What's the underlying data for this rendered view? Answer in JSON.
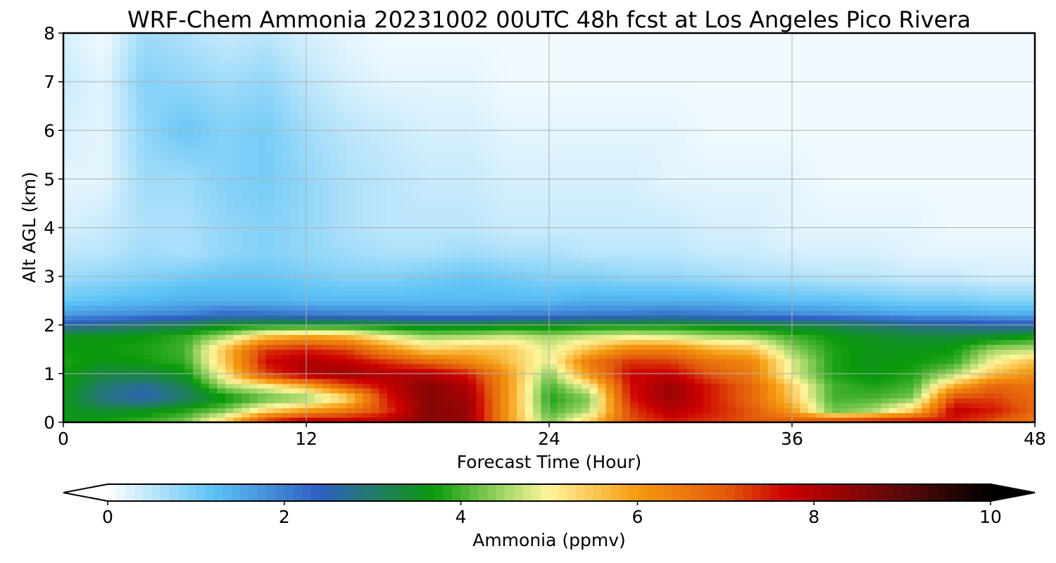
{
  "chart_data": {
    "type": "heatmap",
    "title": "WRF-Chem Ammonia  20231002 00UTC 48h fcst at Los Angeles Pico Rivera",
    "xlabel": "Forecast Time (Hour)",
    "ylabel": "Alt AGL (km)",
    "xlim": [
      0,
      48
    ],
    "ylim": [
      0,
      8
    ],
    "x_ticks": [
      "0",
      "12",
      "24",
      "36",
      "48"
    ],
    "y_ticks": [
      "0",
      "1",
      "2",
      "3",
      "4",
      "5",
      "6",
      "7",
      "8"
    ],
    "grid": true,
    "x": [
      0,
      2,
      4,
      6,
      8,
      10,
      12,
      14,
      16,
      18,
      20,
      22,
      24,
      26,
      28,
      30,
      32,
      34,
      36,
      38,
      40,
      42,
      44,
      46,
      48
    ],
    "y": [
      0,
      0.25,
      0.5,
      0.75,
      1,
      1.25,
      1.5,
      1.75,
      2,
      2.25,
      2.5,
      3,
      3.5,
      4,
      5,
      6,
      7,
      8
    ],
    "z_rows": [
      [
        3.6,
        3.8,
        4.0,
        4.3,
        5.5,
        7.5,
        8.2,
        8.0,
        8.0,
        8.5,
        8.3,
        6.0,
        4.3,
        5.5,
        7.0,
        7.5,
        7.3,
        7.0,
        7.0,
        7.5,
        7.8,
        7.8,
        7.5,
        7.0,
        6.5
      ],
      [
        3.6,
        3.4,
        3.5,
        3.8,
        4.3,
        5.3,
        6.0,
        6.5,
        7.3,
        8.5,
        8.3,
        6.0,
        4.0,
        4.6,
        7.2,
        8.0,
        7.5,
        7.0,
        6.0,
        4.2,
        4.5,
        5.5,
        7.8,
        7.5,
        6.8
      ],
      [
        3.6,
        2.8,
        2.5,
        3.0,
        3.6,
        4.1,
        4.3,
        5.2,
        7.5,
        8.5,
        8.2,
        6.0,
        3.8,
        4.3,
        7.5,
        8.3,
        7.5,
        6.8,
        5.5,
        4.0,
        4.0,
        4.3,
        7.2,
        7.2,
        6.7
      ],
      [
        3.7,
        3.0,
        2.7,
        3.2,
        4.5,
        5.0,
        5.8,
        7.0,
        7.8,
        8.5,
        8.0,
        6.0,
        4.0,
        5.0,
        7.6,
        8.3,
        7.5,
        6.8,
        5.4,
        4.0,
        3.8,
        4.0,
        5.8,
        6.8,
        6.6
      ],
      [
        3.7,
        3.3,
        3.3,
        3.6,
        5.2,
        7.2,
        8.1,
        8.3,
        8.0,
        8.0,
        7.5,
        6.0,
        4.3,
        6.2,
        7.7,
        7.8,
        7.0,
        6.5,
        4.8,
        3.8,
        3.6,
        3.8,
        4.5,
        5.6,
        6.2
      ],
      [
        3.8,
        3.6,
        3.7,
        3.9,
        5.5,
        7.6,
        8.0,
        7.8,
        7.3,
        6.8,
        6.3,
        5.6,
        4.8,
        6.5,
        7.3,
        7.2,
        6.6,
        6.3,
        4.8,
        3.8,
        3.6,
        3.7,
        3.9,
        5.0,
        5.6
      ],
      [
        3.7,
        3.7,
        3.8,
        4.0,
        5.6,
        7.3,
        7.5,
        7.2,
        6.2,
        5.4,
        5.6,
        5.5,
        4.8,
        5.6,
        6.4,
        6.4,
        5.8,
        5.6,
        4.4,
        3.8,
        3.6,
        3.6,
        3.7,
        4.5,
        4.6
      ],
      [
        3.6,
        3.6,
        3.7,
        3.9,
        4.6,
        5.7,
        6.0,
        5.8,
        5.0,
        4.5,
        4.6,
        4.8,
        4.5,
        4.8,
        5.0,
        4.9,
        4.6,
        4.5,
        4.0,
        3.7,
        3.5,
        3.4,
        3.4,
        3.5,
        3.8
      ],
      [
        2.6,
        2.8,
        3.0,
        3.2,
        3.5,
        3.6,
        3.6,
        3.6,
        3.5,
        3.4,
        3.4,
        3.5,
        3.5,
        3.6,
        3.6,
        3.6,
        3.5,
        3.4,
        3.3,
        3.2,
        3.0,
        2.8,
        2.7,
        2.6,
        2.5
      ],
      [
        1.6,
        1.7,
        1.8,
        1.9,
        2.2,
        2.1,
        2.0,
        1.9,
        1.9,
        1.8,
        1.8,
        1.9,
        1.9,
        2.0,
        2.0,
        2.1,
        2.0,
        1.9,
        1.8,
        1.7,
        1.6,
        1.5,
        1.5,
        1.4,
        1.4
      ],
      [
        1.1,
        1.2,
        1.3,
        1.4,
        1.4,
        1.4,
        1.3,
        1.3,
        1.3,
        1.3,
        1.3,
        1.3,
        1.3,
        1.4,
        1.4,
        1.4,
        1.4,
        1.3,
        1.2,
        1.2,
        1.1,
        1.0,
        1.0,
        0.9,
        0.9
      ],
      [
        0.7,
        0.8,
        0.9,
        1.0,
        1.1,
        1.1,
        1.0,
        0.9,
        0.9,
        1.0,
        1.1,
        1.0,
        0.9,
        0.9,
        0.8,
        0.8,
        0.7,
        0.6,
        0.6,
        0.5,
        0.5,
        0.4,
        0.4,
        0.3,
        0.3
      ],
      [
        0.5,
        0.5,
        0.7,
        0.6,
        0.8,
        0.9,
        0.8,
        0.7,
        0.6,
        0.6,
        0.7,
        0.6,
        0.6,
        0.5,
        0.5,
        0.5,
        0.4,
        0.4,
        0.3,
        0.3,
        0.3,
        0.2,
        0.2,
        0.2,
        0.2
      ],
      [
        0.3,
        0.4,
        0.6,
        0.6,
        0.8,
        0.9,
        0.8,
        0.6,
        0.5,
        0.5,
        0.5,
        0.4,
        0.4,
        0.4,
        0.4,
        0.4,
        0.3,
        0.3,
        0.2,
        0.2,
        0.2,
        0.2,
        0.1,
        0.1,
        0.1
      ],
      [
        0.2,
        0.2,
        0.7,
        0.7,
        0.9,
        1.0,
        0.8,
        0.6,
        0.5,
        0.4,
        0.4,
        0.3,
        0.3,
        0.3,
        0.3,
        0.2,
        0.2,
        0.2,
        0.2,
        0.1,
        0.1,
        0.1,
        0.1,
        0.1,
        0.1
      ],
      [
        0.3,
        0.2,
        0.8,
        1.1,
        0.9,
        1.0,
        0.7,
        0.5,
        0.4,
        0.3,
        0.3,
        0.2,
        0.2,
        0.2,
        0.2,
        0.2,
        0.1,
        0.1,
        0.1,
        0.1,
        0.1,
        0.1,
        0.1,
        0.1,
        0.1
      ],
      [
        0.4,
        0.2,
        0.9,
        0.8,
        0.7,
        0.8,
        0.5,
        0.3,
        0.2,
        0.2,
        0.2,
        0.1,
        0.1,
        0.1,
        0.1,
        0.1,
        0.1,
        0.1,
        0.1,
        0.1,
        0.1,
        0.1,
        0.1,
        0.1,
        0.1
      ],
      [
        0.3,
        0.1,
        0.7,
        0.6,
        0.4,
        0.5,
        0.3,
        0.2,
        0.1,
        0.1,
        0.1,
        0.1,
        0.1,
        0.1,
        0.1,
        0.1,
        0.1,
        0.1,
        0.1,
        0.1,
        0.1,
        0.1,
        0.1,
        0.1,
        0.1
      ]
    ],
    "colorbar": {
      "label": "Ammonia  (ppmv)",
      "range": [
        0,
        10
      ],
      "ticks": [
        "0",
        "2",
        "4",
        "6",
        "8",
        "10"
      ],
      "extend": "both",
      "stops": [
        {
          "v": 0.0,
          "c": "#ffffff"
        },
        {
          "v": 1.2,
          "c": "#5bc2f5"
        },
        {
          "v": 2.4,
          "c": "#2f5fc4"
        },
        {
          "v": 3.0,
          "c": "#237b6c"
        },
        {
          "v": 3.7,
          "c": "#0a9a0a"
        },
        {
          "v": 4.5,
          "c": "#a6d86a"
        },
        {
          "v": 5.0,
          "c": "#fff59a"
        },
        {
          "v": 6.0,
          "c": "#f59a10"
        },
        {
          "v": 7.0,
          "c": "#e35a0c"
        },
        {
          "v": 7.7,
          "c": "#cc0000"
        },
        {
          "v": 9.0,
          "c": "#5a0a0a"
        },
        {
          "v": 10.0,
          "c": "#000000"
        }
      ]
    }
  }
}
